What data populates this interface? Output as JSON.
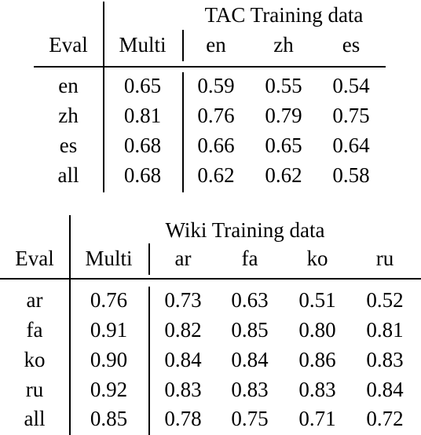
{
  "tables": [
    {
      "group_header": "TAC Training data",
      "eval_header": "Eval",
      "multi_header": "Multi",
      "lang_headers": [
        "en",
        "zh",
        "es"
      ],
      "rows": [
        {
          "eval": "en",
          "multi": "0.65",
          "values": [
            "0.59",
            "0.55",
            "0.54"
          ]
        },
        {
          "eval": "zh",
          "multi": "0.81",
          "values": [
            "0.76",
            "0.79",
            "0.75"
          ]
        },
        {
          "eval": "es",
          "multi": "0.68",
          "values": [
            "0.66",
            "0.65",
            "0.64"
          ]
        },
        {
          "eval": "all",
          "multi": "0.68",
          "values": [
            "0.62",
            "0.62",
            "0.58"
          ]
        }
      ]
    },
    {
      "group_header": "Wiki Training data",
      "eval_header": "Eval",
      "multi_header": "Multi",
      "lang_headers": [
        "ar",
        "fa",
        "ko",
        "ru"
      ],
      "rows": [
        {
          "eval": "ar",
          "multi": "0.76",
          "values": [
            "0.73",
            "0.63",
            "0.51",
            "0.52"
          ]
        },
        {
          "eval": "fa",
          "multi": "0.91",
          "values": [
            "0.82",
            "0.85",
            "0.80",
            "0.81"
          ]
        },
        {
          "eval": "ko",
          "multi": "0.90",
          "values": [
            "0.84",
            "0.84",
            "0.86",
            "0.83"
          ]
        },
        {
          "eval": "ru",
          "multi": "0.92",
          "values": [
            "0.83",
            "0.83",
            "0.83",
            "0.84"
          ]
        },
        {
          "eval": "all",
          "multi": "0.85",
          "values": [
            "0.78",
            "0.75",
            "0.71",
            "0.72"
          ]
        }
      ]
    }
  ]
}
